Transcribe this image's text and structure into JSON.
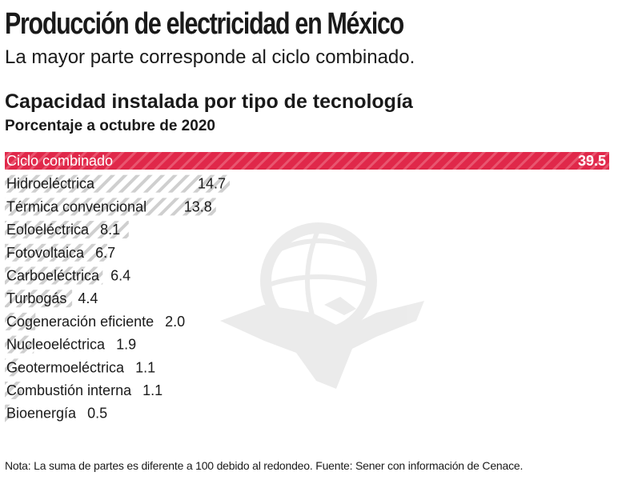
{
  "header": {
    "title": "Producción de electricidad en México",
    "subtitle": "La mayor parte corresponde al ciclo combinado."
  },
  "chart_data": {
    "type": "bar",
    "orientation": "horizontal",
    "title": "Capacidad instalada por tipo de tecnología",
    "subtitle": "Porcentaje a octubre de 2020",
    "categories": [
      "Ciclo combinado",
      "Hidroeléctrica",
      "Térmica convencional",
      "Eoloeléctrica",
      "Fotovoltaica",
      "Carboeléctrica",
      "Turbogás",
      "Cogeneración eficiente",
      "Nucleoeléctrica",
      "Geotermoeléctrica",
      "Combustión interna",
      "Bioenergía"
    ],
    "values": [
      39.5,
      14.7,
      13.8,
      8.1,
      6.7,
      6.4,
      4.4,
      2.0,
      1.9,
      1.1,
      1.1,
      0.5
    ],
    "value_labels": [
      "39.5",
      "14.7",
      "13.8",
      "8.1",
      "6.7",
      "6.4",
      "4.4",
      "2.0",
      "1.9",
      "1.1",
      "1.1",
      "0.5"
    ],
    "xlim": [
      0,
      39.5
    ],
    "grid": false,
    "legend": "none",
    "colors": {
      "highlight": "#e0284a",
      "hatch": "#c8c8c8",
      "text": "#1a1a1a",
      "highlight_text": "#ffffff"
    }
  },
  "footer": {
    "note": "Nota: La suma de partes es diferente a 100 debido al redondeo. Fuente: Sener con información de Cenace."
  },
  "watermark": {
    "icon": "eagle-globe-icon"
  }
}
